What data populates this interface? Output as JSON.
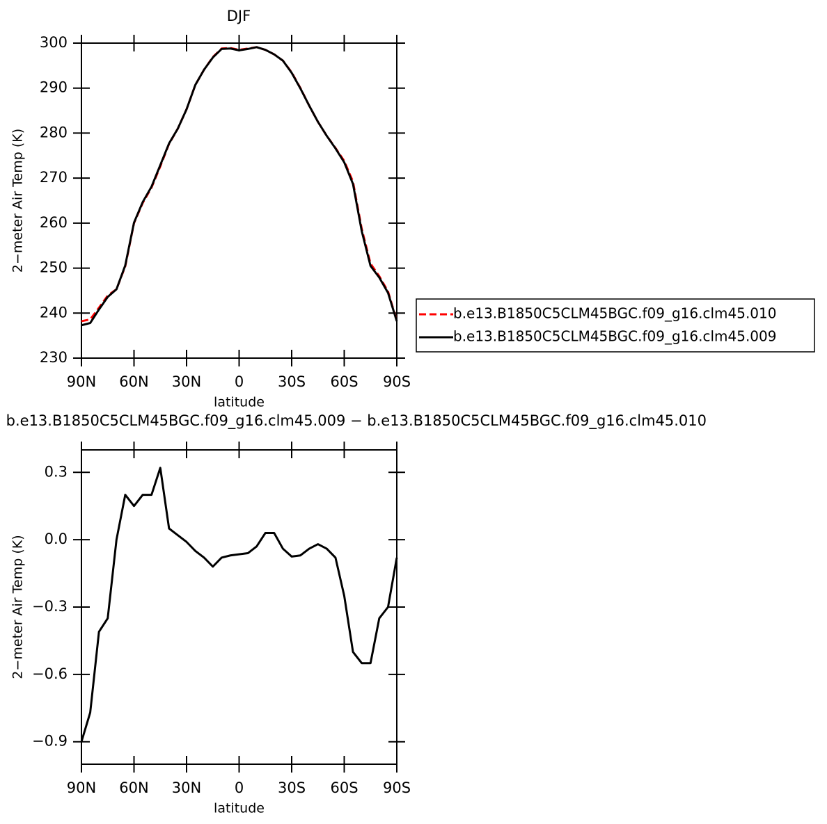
{
  "chart_data": [
    {
      "type": "line",
      "title": "DJF",
      "x_label": "latitude",
      "y_label": "2−meter Air Temp (K)",
      "x": [
        90,
        85,
        80,
        75,
        70,
        65,
        60,
        55,
        50,
        45,
        40,
        35,
        30,
        25,
        20,
        15,
        10,
        5,
        0,
        -5,
        -10,
        -15,
        -20,
        -25,
        -30,
        -35,
        -40,
        -45,
        -50,
        -55,
        -60,
        -65,
        -70,
        -75,
        -80,
        -85,
        -90
      ],
      "xlim": [
        90,
        -90
      ],
      "xticks": [
        {
          "value": 90,
          "label": "90N"
        },
        {
          "value": 60,
          "label": "60N"
        },
        {
          "value": 30,
          "label": "30N"
        },
        0,
        {
          "value": -30,
          "label": "30S"
        },
        {
          "value": -60,
          "label": "60S"
        },
        {
          "value": -90,
          "label": "90S"
        }
      ],
      "ylim": [
        230,
        300
      ],
      "yticks": [
        230,
        240,
        250,
        260,
        270,
        280,
        290,
        300
      ],
      "legend": "right",
      "series": [
        {
          "name": "b.e13.B1850C5CLM45BGC.f09_g16.clm45.010",
          "color": "#ff0000",
          "dashed": true,
          "values": [
            238.2,
            238.6,
            241.2,
            243.9,
            245.3,
            250.4,
            260,
            264.5,
            267.9,
            272.6,
            277.6,
            281,
            285.3,
            290.7,
            294.1,
            296.9,
            298.8,
            298.9,
            298.5,
            298.8,
            299.1,
            298.5,
            297.5,
            296.1,
            293.5,
            290,
            286.1,
            282.5,
            279.4,
            276.7,
            273.8,
            269.2,
            258.7,
            251,
            248.2,
            244.8,
            238.3
          ]
        },
        {
          "name": "b.e13.B1850C5CLM45BGC.f09_g16.clm45.009",
          "color": "#000000",
          "dashed": false,
          "values": [
            237.3,
            237.8,
            240.8,
            243.6,
            245.3,
            250.6,
            260.1,
            264.7,
            268.1,
            272.9,
            277.7,
            281,
            285.3,
            290.7,
            294.1,
            296.8,
            298.7,
            298.8,
            298.4,
            298.7,
            299.1,
            298.5,
            297.5,
            296.1,
            293.4,
            289.9,
            286.1,
            282.5,
            279.4,
            276.6,
            273.5,
            268.7,
            258.2,
            250.5,
            247.9,
            244.5,
            238.2
          ]
        }
      ]
    },
    {
      "type": "line",
      "title": "b.e13.B1850C5CLM45BGC.f09_g16.clm45.009 − b.e13.B1850C5CLM45BGC.f09_g16.clm45.010",
      "x_label": "latitude",
      "y_label": "2−meter Air Temp (K)",
      "x": [
        90,
        85,
        80,
        75,
        70,
        65,
        60,
        55,
        50,
        45,
        40,
        35,
        30,
        25,
        20,
        15,
        10,
        5,
        0,
        -5,
        -10,
        -15,
        -20,
        -25,
        -30,
        -35,
        -40,
        -45,
        -50,
        -55,
        -60,
        -65,
        -70,
        -75,
        -80,
        -85,
        -90
      ],
      "xlim": [
        90,
        -90
      ],
      "xticks": [
        {
          "value": 90,
          "label": "90N"
        },
        {
          "value": 60,
          "label": "60N"
        },
        {
          "value": 30,
          "label": "30N"
        },
        0,
        {
          "value": -30,
          "label": "30S"
        },
        {
          "value": -60,
          "label": "60S"
        },
        {
          "value": -90,
          "label": "90S"
        }
      ],
      "ylim": [
        -1.0,
        0.4
      ],
      "yticks": [
        {
          "value": -0.9,
          "label": "−0.9"
        },
        {
          "value": -0.6,
          "label": "−0.6"
        },
        {
          "value": -0.3,
          "label": "−0.3"
        },
        {
          "value": 0,
          "label": "0.0"
        },
        0.3
      ],
      "series": [
        {
          "name": null,
          "color": "#000000",
          "dashed": false,
          "values": [
            -0.9,
            -0.77,
            -0.41,
            -0.35,
            0.0,
            0.2,
            0.15,
            0.2,
            0.2,
            0.32,
            0.05,
            0.02,
            -0.01,
            -0.05,
            -0.08,
            -0.12,
            -0.08,
            -0.07,
            -0.065,
            -0.06,
            -0.03,
            0.03,
            0.03,
            -0.04,
            -0.075,
            -0.07,
            -0.04,
            -0.02,
            -0.04,
            -0.08,
            -0.25,
            -0.5,
            -0.55,
            -0.55,
            -0.35,
            -0.3,
            -0.08
          ]
        }
      ]
    }
  ]
}
